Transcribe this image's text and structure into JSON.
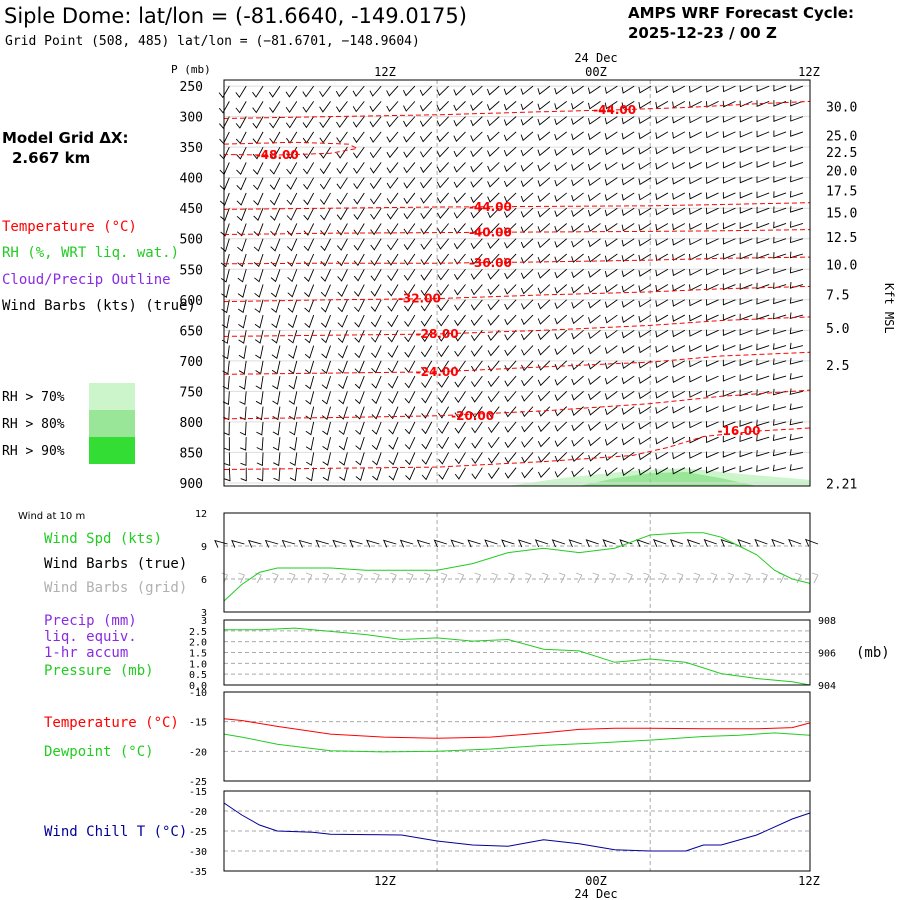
{
  "header": {
    "title": "Siple Dome:  lat/lon = (-81.6640, -149.0175)",
    "subtitle": "Grid Point (508, 485) lat/lon = (−81.6701, −148.9604)",
    "cycle_label": "AMPS WRF Forecast Cycle:",
    "cycle_value": "2025-12-23 / 00  Z"
  },
  "colors": {
    "temperature": "#ff0000",
    "rh": "#22cc22",
    "cloud": "#8a2be2",
    "wind_chill": "#000099",
    "barb_true": "#000000",
    "barb_grid": "#b0b0b0",
    "grid": "#aaaaaa",
    "rh70": "#ccf5cc",
    "rh80": "#99e699",
    "rh90": "#33dd33"
  },
  "time_axis": {
    "date_top": "24 Dec",
    "date_bottom": "24 Dec",
    "labels": [
      "12Z",
      "00Z",
      "12Z"
    ]
  },
  "left_panel": {
    "model_grid_label": "Model Grid ΔX:",
    "model_grid_value": "2.667 km",
    "legend_temperature": "Temperature (°C)",
    "legend_rh": "RH (%, WRT liq. wat.)",
    "legend_cloud": "Cloud/Precip Outline",
    "legend_wind": "Wind Barbs (kts) (true)",
    "rh_levels": [
      "RH > 70%",
      "RH > 80%",
      "RH > 90%"
    ]
  },
  "panel_labels": {
    "wind10m_title": "Wind at 10 m",
    "wind_spd": "Wind Spd (kts)",
    "wind_barbs_true": "Wind Barbs (true)",
    "wind_barbs_grid": "Wind Barbs (grid)",
    "precip": "Precip (mm)",
    "liq_equiv": "liq. equiv.",
    "accum": "1-hr accum",
    "pressure": "Pressure (mb)",
    "pressure_unit": "(mb)",
    "temperature": "Temperature (°C)",
    "dewpoint": "Dewpoint (°C)",
    "wind_chill": "Wind Chill T (°C)"
  },
  "chart_data": [
    {
      "type": "heatmap",
      "name": "vertical_cross_section",
      "y_title": "P (mb)",
      "y_ticks": [
        "250",
        "300",
        "350",
        "400",
        "450",
        "500",
        "550",
        "600",
        "650",
        "700",
        "750",
        "800",
        "850",
        "900"
      ],
      "pressure_levels": [
        250,
        300,
        350,
        400,
        450,
        500,
        550,
        600,
        650,
        700,
        750,
        800,
        850,
        900
      ],
      "y_range": [
        240,
        905
      ],
      "x_range_hours": [
        0,
        33
      ],
      "right_axis_title": "Kft MSL",
      "right_ticks": [
        {
          "label": "30.0",
          "p": 283
        },
        {
          "label": "25.0",
          "p": 331
        },
        {
          "label": "22.5",
          "p": 358
        },
        {
          "label": "20.0",
          "p": 388
        },
        {
          "label": "17.5",
          "p": 421
        },
        {
          "label": "15.0",
          "p": 457
        },
        {
          "label": "12.5",
          "p": 497
        },
        {
          "label": "10.0",
          "p": 542
        },
        {
          "label": "7.5",
          "p": 591
        },
        {
          "label": "5.0",
          "p": 646
        },
        {
          "label": "2.5",
          "p": 707
        },
        {
          "label": "2.21",
          "p": 901
        }
      ],
      "temperature_contours": [
        {
          "label": "-44.00",
          "label_hour": 22,
          "points": [
            [
              0,
              303
            ],
            [
              6,
              300
            ],
            [
              12,
              297
            ],
            [
              18,
              292
            ],
            [
              22,
              289
            ],
            [
              26,
              285
            ],
            [
              30,
              279
            ],
            [
              33,
              275
            ]
          ]
        },
        {
          "label": "-48.00",
          "label_hour": 3,
          "points": [
            [
              0,
              345
            ],
            [
              4,
              342
            ],
            [
              7,
              345
            ],
            [
              7.5,
              352
            ],
            [
              6,
              360
            ],
            [
              3,
              363
            ],
            [
              0,
              362
            ]
          ]
        },
        {
          "label": "-44.00",
          "label_hour": 15,
          "points": [
            [
              0,
              452
            ],
            [
              6,
              450
            ],
            [
              12,
              448
            ],
            [
              18,
              447
            ],
            [
              24,
              446
            ],
            [
              28,
              444
            ],
            [
              33,
              441
            ]
          ]
        },
        {
          "label": "-40.00",
          "label_hour": 15,
          "points": [
            [
              0,
              493
            ],
            [
              6,
              491
            ],
            [
              12,
              490
            ],
            [
              18,
              489
            ],
            [
              24,
              488
            ],
            [
              28,
              487
            ],
            [
              33,
              485
            ]
          ]
        },
        {
          "label": "-36.00",
          "label_hour": 15,
          "points": [
            [
              0,
              541
            ],
            [
              6,
              540
            ],
            [
              12,
              540
            ],
            [
              18,
              538
            ],
            [
              24,
              535
            ],
            [
              28,
              532
            ],
            [
              33,
              530
            ]
          ]
        },
        {
          "label": "-32.00",
          "label_hour": 11,
          "points": [
            [
              0,
              603
            ],
            [
              6,
              600
            ],
            [
              12,
              598
            ],
            [
              18,
              592
            ],
            [
              24,
              587
            ],
            [
              28,
              582
            ],
            [
              33,
              578
            ]
          ]
        },
        {
          "label": "-28.00",
          "label_hour": 12,
          "points": [
            [
              0,
              660
            ],
            [
              6,
              658
            ],
            [
              12,
              656
            ],
            [
              18,
              650
            ],
            [
              24,
              642
            ],
            [
              28,
              634
            ],
            [
              33,
              628
            ]
          ]
        },
        {
          "label": "-24.00",
          "label_hour": 12,
          "points": [
            [
              0,
              722
            ],
            [
              6,
              720
            ],
            [
              12,
              718
            ],
            [
              18,
              710
            ],
            [
              24,
              702
            ],
            [
              28,
              692
            ],
            [
              33,
              686
            ]
          ]
        },
        {
          "label": "-20.00",
          "label_hour": 14,
          "points": [
            [
              0,
              795
            ],
            [
              6,
              793
            ],
            [
              12,
              790
            ],
            [
              18,
              782
            ],
            [
              24,
              770
            ],
            [
              28,
              758
            ],
            [
              33,
              748
            ]
          ]
        },
        {
          "label": "-16.00",
          "label_hour": 29,
          "points": [
            [
              0,
              878
            ],
            [
              6,
              876
            ],
            [
              12,
              874
            ],
            [
              18,
              865
            ],
            [
              23,
              855
            ],
            [
              25,
              842
            ],
            [
              27,
              824
            ],
            [
              30,
              815
            ],
            [
              33,
              810
            ]
          ]
        }
      ],
      "rh_regions": [
        {
          "level": "rh70",
          "points": [
            [
              0,
              905
            ],
            [
              16,
              905
            ],
            [
              19,
              892
            ],
            [
              23,
              880
            ],
            [
              26,
              876
            ],
            [
              29,
              885
            ],
            [
              33,
              895
            ],
            [
              33,
              905
            ]
          ]
        },
        {
          "level": "rh80",
          "points": [
            [
              20,
              905
            ],
            [
              22,
              892
            ],
            [
              24,
              884
            ],
            [
              26,
              882
            ],
            [
              28,
              892
            ],
            [
              30,
              905
            ]
          ]
        }
      ]
    },
    {
      "type": "line",
      "name": "wind_10m",
      "y_ticks": [
        "12",
        "9",
        "6",
        "3"
      ],
      "y_range": [
        3,
        12
      ],
      "series": [
        {
          "name": "Wind Spd (kts)",
          "x": [
            0,
            1,
            2,
            3,
            4,
            6,
            8,
            10,
            12,
            14,
            16,
            18,
            20,
            22,
            24,
            26,
            27,
            28,
            29,
            30,
            31,
            32,
            33
          ],
          "values": [
            4.0,
            5.5,
            6.6,
            7.0,
            7.0,
            7.0,
            6.8,
            6.8,
            6.8,
            7.4,
            8.4,
            8.8,
            8.4,
            8.8,
            10.0,
            10.2,
            10.2,
            9.8,
            9.0,
            8.2,
            6.8,
            6.0,
            5.6
          ]
        }
      ]
    },
    {
      "type": "line",
      "name": "precip_pressure",
      "y_ticks": [
        "3",
        "2.5",
        "2.0",
        "1.5",
        "1.0",
        "0.5",
        "0.0"
      ],
      "y_range": [
        0,
        3
      ],
      "right_ticks": [
        "908",
        "906",
        "904"
      ],
      "right_range": [
        904,
        908
      ],
      "series": [
        {
          "name": "Pressure (mb)",
          "x": [
            0,
            2,
            4,
            6,
            8,
            10,
            12,
            14,
            16,
            18,
            20,
            22,
            24,
            26,
            28,
            30,
            32,
            33
          ],
          "values": [
            907.4,
            907.4,
            907.5,
            907.3,
            907.1,
            906.8,
            906.9,
            906.7,
            906.8,
            906.2,
            906.1,
            905.4,
            905.6,
            905.4,
            904.7,
            904.4,
            904.2,
            904.0
          ]
        }
      ]
    },
    {
      "type": "line",
      "name": "temperature_dewpoint",
      "y_ticks": [
        "-10",
        "-15",
        "-20",
        "-25"
      ],
      "y_range": [
        -25,
        -10
      ],
      "series": [
        {
          "name": "Temperature (°C)",
          "x": [
            0,
            1,
            3,
            6,
            9,
            12,
            15,
            18,
            20,
            22,
            24,
            27,
            30,
            32,
            33
          ],
          "values": [
            -14.5,
            -14.8,
            -15.8,
            -17.1,
            -17.6,
            -17.8,
            -17.6,
            -16.9,
            -16.3,
            -16.1,
            -16.1,
            -16.2,
            -16.2,
            -16.0,
            -15.2
          ]
        },
        {
          "name": "Dewpoint (°C)",
          "x": [
            0,
            1,
            3,
            6,
            9,
            12,
            15,
            18,
            21,
            24,
            27,
            29,
            31,
            33
          ],
          "values": [
            -17.1,
            -17.6,
            -18.8,
            -19.9,
            -20.1,
            -20.0,
            -19.6,
            -19.0,
            -18.6,
            -18.1,
            -17.5,
            -17.3,
            -16.9,
            -17.3
          ]
        }
      ]
    },
    {
      "type": "line",
      "name": "wind_chill",
      "y_ticks": [
        "-15",
        "-20",
        "-25",
        "-30",
        "-35"
      ],
      "y_range": [
        -35,
        -15
      ],
      "series": [
        {
          "name": "Wind Chill T (°C)",
          "x": [
            0,
            1,
            2,
            3,
            5,
            6,
            8,
            10,
            12,
            14,
            16,
            18,
            20,
            22,
            24,
            26,
            27,
            28,
            30,
            32,
            33
          ],
          "values": [
            -18.0,
            -21.0,
            -23.5,
            -25.0,
            -25.3,
            -25.8,
            -25.9,
            -26.0,
            -27.5,
            -28.5,
            -28.8,
            -27.2,
            -28.2,
            -29.7,
            -30.0,
            -30.0,
            -28.5,
            -28.5,
            -26.0,
            -22.0,
            -20.5
          ]
        }
      ]
    }
  ]
}
